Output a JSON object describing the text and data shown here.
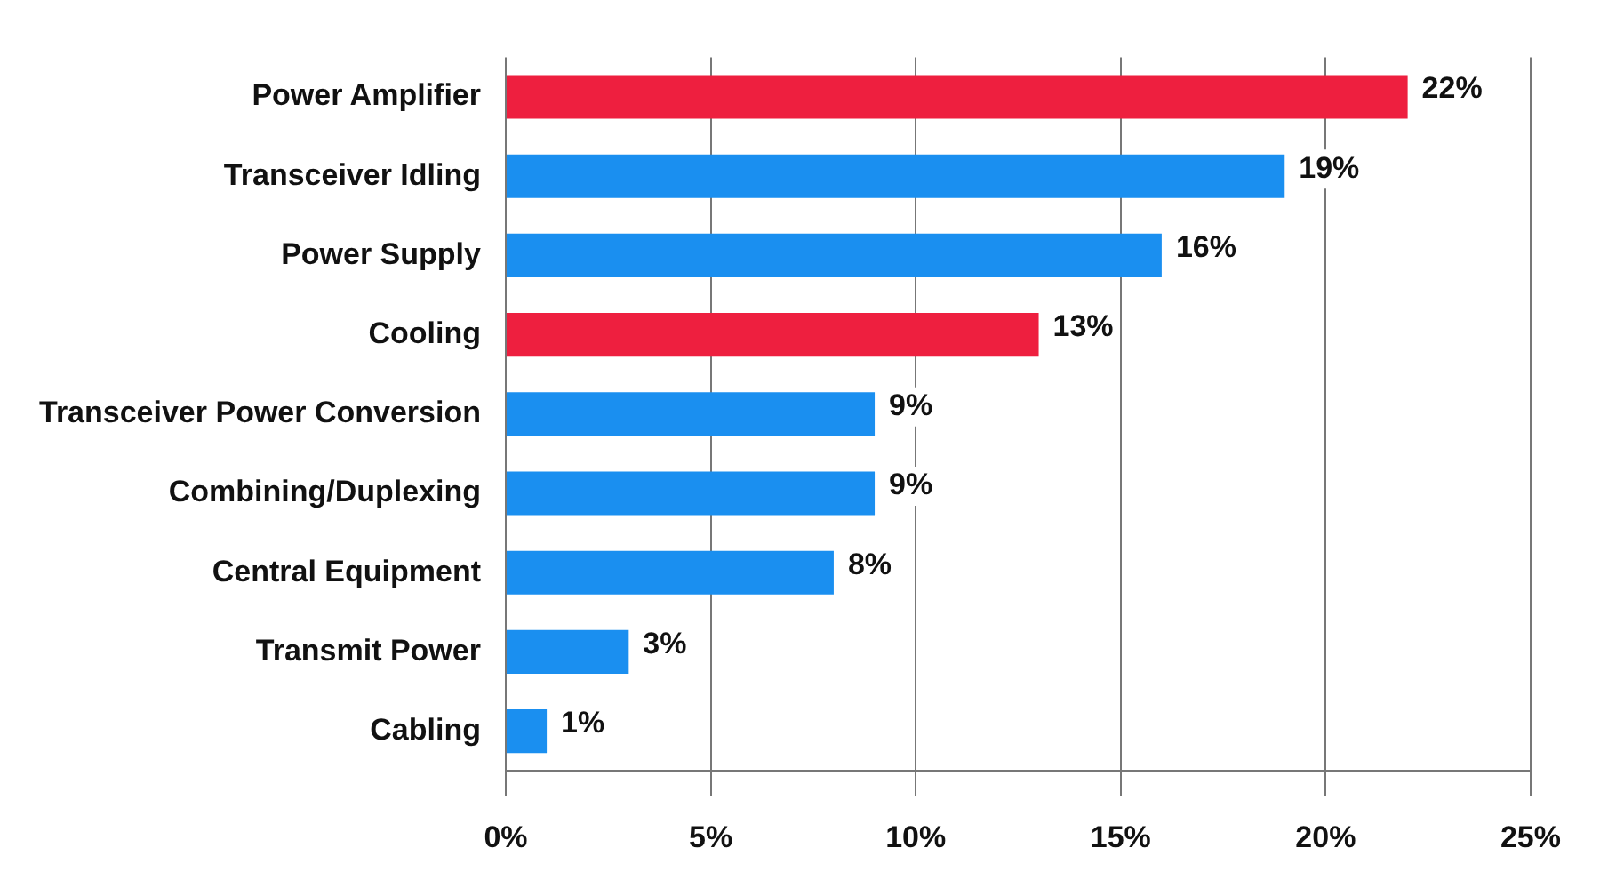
{
  "chart_data": {
    "type": "bar",
    "orientation": "horizontal",
    "categories": [
      "Power Amplifier",
      "Transceiver Idling",
      "Power Supply",
      "Cooling",
      "Transceiver Power Conversion",
      "Combining/Duplexing",
      "Central Equipment",
      "Transmit Power",
      "Cabling"
    ],
    "values": [
      22,
      19,
      16,
      13,
      9,
      9,
      8,
      3,
      1
    ],
    "colors": [
      "#ee1f3f",
      "#1a8ff0",
      "#1a8ff0",
      "#ee1f3f",
      "#1a8ff0",
      "#1a8ff0",
      "#1a8ff0",
      "#1a8ff0",
      "#1a8ff0"
    ],
    "value_labels": [
      "22%",
      "19%",
      "16%",
      "13%",
      "9%",
      "9%",
      "8%",
      "3%",
      "1%"
    ],
    "xlim": [
      0,
      25
    ],
    "xticks": [
      {
        "value": 0,
        "label": "0%"
      },
      {
        "value": 5,
        "label": "5%"
      },
      {
        "value": 10,
        "label": "10%"
      },
      {
        "value": 15,
        "label": "15%"
      },
      {
        "value": 20,
        "label": "20%"
      },
      {
        "value": 25,
        "label": "25%"
      }
    ],
    "grid": "x",
    "legend": false
  }
}
